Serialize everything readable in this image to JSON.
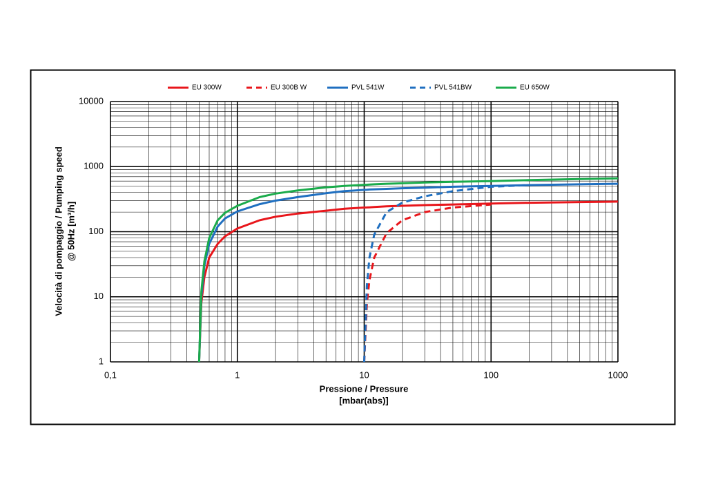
{
  "chart_data": {
    "type": "line",
    "xlabel": [
      "Pressione / Pressure",
      "[mbar(abs)]"
    ],
    "ylabel": [
      "Velocità di pompaggio / Pumping speed",
      "@ 50Hz [m³/h]"
    ],
    "log_x": true,
    "log_y": true,
    "grid": true,
    "minor_grid": true,
    "legend": "top",
    "xlim": [
      0.1,
      1000
    ],
    "xticks": [
      {
        "value": 0.1,
        "label": "0,1"
      },
      1,
      10,
      100,
      1000
    ],
    "ylim": [
      1,
      10000
    ],
    "yticks": [
      1,
      10,
      100,
      1000,
      10000
    ],
    "x": [
      0.5,
      0.52,
      0.55,
      0.6,
      0.7,
      0.8,
      1,
      1.5,
      2,
      3,
      5,
      7,
      10,
      10.5,
      11,
      12,
      15,
      20,
      30,
      50,
      100,
      200,
      500,
      1000
    ],
    "series": [
      {
        "name": "EU 300W",
        "color": "#e8161b",
        "dashed": false,
        "values": [
          1,
          8,
          20,
          40,
          65,
          85,
          112,
          150,
          170,
          190,
          210,
          225,
          235,
          236,
          237,
          240,
          245,
          250,
          256,
          262,
          270,
          278,
          285,
          290
        ]
      },
      {
        "name": "EU 300B W",
        "color": "#e8161b",
        "dashed": true,
        "values": [
          null,
          null,
          null,
          null,
          null,
          null,
          null,
          null,
          null,
          null,
          null,
          null,
          1,
          8,
          18,
          40,
          95,
          150,
          200,
          235,
          262,
          null,
          null,
          null
        ]
      },
      {
        "name": "PVL 541W",
        "color": "#1f6fc0",
        "dashed": false,
        "values": [
          1,
          10,
          30,
          65,
          120,
          160,
          205,
          265,
          300,
          340,
          390,
          420,
          440,
          442,
          445,
          448,
          455,
          465,
          475,
          490,
          505,
          520,
          535,
          545
        ]
      },
      {
        "name": "PVL 541BW",
        "color": "#1f6fc0",
        "dashed": true,
        "values": [
          null,
          null,
          null,
          null,
          null,
          null,
          null,
          null,
          null,
          null,
          null,
          null,
          1,
          15,
          40,
          90,
          200,
          280,
          350,
          420,
          490,
          520,
          null,
          null
        ]
      },
      {
        "name": "EU 650W",
        "color": "#1aab4b",
        "dashed": false,
        "values": [
          1,
          12,
          35,
          80,
          150,
          195,
          250,
          340,
          385,
          430,
          480,
          505,
          525,
          527,
          530,
          535,
          545,
          555,
          570,
          585,
          600,
          620,
          645,
          660
        ]
      }
    ]
  }
}
